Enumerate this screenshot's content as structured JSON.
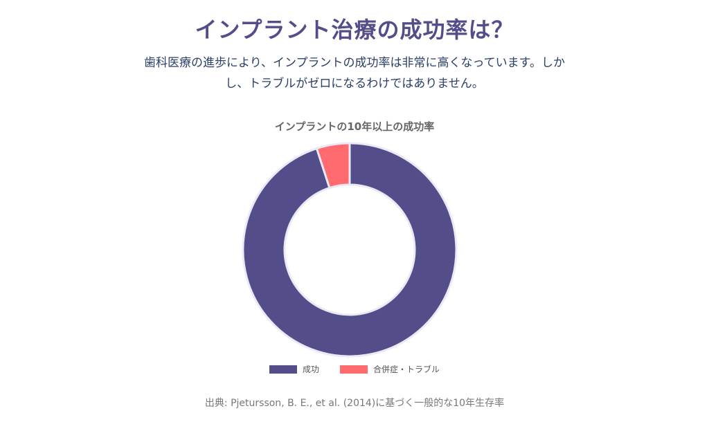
{
  "header": {
    "title": "インプラント治療の成功率は？",
    "lead_line1": "歯科医療の進歩により、インプラントの成功率は非常に高くなっています。しか",
    "lead_line2": "し、トラブルがゼロになるわけではありません。"
  },
  "chart_data": {
    "type": "doughnut",
    "title": "インプラントの10年以上の成功率",
    "categories": [
      "成功",
      "合併症・トラブル"
    ],
    "values": [
      95,
      5
    ],
    "colors": [
      "#534e8a",
      "#ff6b6e"
    ],
    "legend_position": "bottom"
  },
  "footer": {
    "source": "出典: Pjetursson, B. E., et al. (2014)に基づく一般的な10年生存率"
  }
}
